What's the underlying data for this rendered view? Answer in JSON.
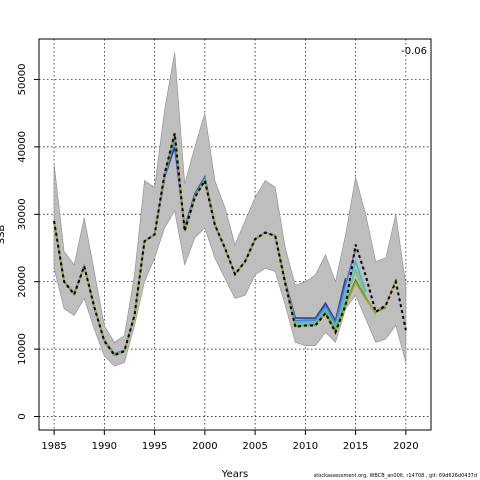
{
  "chart_data": {
    "type": "line",
    "title": "",
    "xlabel": "Years",
    "ylabel": "SSB",
    "annotation": "-0.06",
    "xlim": [
      1983.5,
      2022.5
    ],
    "ylim": [
      -2000,
      56000
    ],
    "x_ticks": [
      "1985",
      "1990",
      "1995",
      "2000",
      "2005",
      "2010",
      "2015",
      "2020"
    ],
    "y_ticks": [
      "0",
      "10000",
      "20000",
      "30000",
      "40000",
      "50000"
    ],
    "grid": true,
    "grid_style": "dotted",
    "colors": {
      "ci_band": "#bebebe",
      "ci_band_edge": "#8a8a8a",
      "peels": [
        "#1f3fb0",
        "#4a78d8",
        "#41b8c8",
        "#7cc46a",
        "#2f8a2f",
        "#b0a030"
      ],
      "terminal": "#000000"
    },
    "confidence_band": {
      "x": [
        1985,
        1986,
        1987,
        1988,
        1989,
        1990,
        1991,
        1992,
        1993,
        1994,
        1995,
        1996,
        1997,
        1998,
        1999,
        2000,
        2001,
        2002,
        2003,
        2004,
        2005,
        2006,
        2007,
        2008,
        2009,
        2010,
        2011,
        2012,
        2013,
        2014,
        2015,
        2016,
        2017,
        2018,
        2019,
        2020
      ],
      "upper": [
        37500,
        24500,
        22500,
        29500,
        21500,
        13500,
        11000,
        12000,
        21000,
        35000,
        34000,
        45500,
        54000,
        34500,
        40000,
        45000,
        35000,
        31000,
        25500,
        29000,
        32500,
        35000,
        34000,
        25000,
        19500,
        20000,
        21000,
        24000,
        20000,
        27000,
        35500,
        30000,
        23000,
        23500,
        30000,
        19500
      ],
      "lower": [
        22000,
        16000,
        15000,
        17500,
        13000,
        9000,
        7500,
        8000,
        13500,
        20000,
        23500,
        28000,
        30500,
        22500,
        26500,
        28000,
        23500,
        20500,
        17500,
        18000,
        21000,
        22000,
        21500,
        16500,
        11000,
        10500,
        10500,
        12500,
        11000,
        16000,
        18000,
        14500,
        11000,
        11500,
        13500,
        8000
      ]
    },
    "series": [
      {
        "end": 2014,
        "color_index": 0,
        "x": [
          1985,
          1986,
          1987,
          1988,
          1989,
          1990,
          1991,
          1992,
          1993,
          1994,
          1995,
          1996,
          1997,
          1998,
          1999,
          2000,
          2001,
          2002,
          2003,
          2004,
          2005,
          2006,
          2007,
          2008,
          2009,
          2010,
          2011,
          2012,
          2013,
          2014
        ],
        "values": [
          28800,
          20000,
          18300,
          22300,
          16300,
          11300,
          9300,
          9800,
          15000,
          26000,
          27000,
          35500,
          40000,
          28000,
          33000,
          35500,
          28500,
          25000,
          21100,
          23000,
          26300,
          27300,
          26800,
          20000,
          14600,
          14600,
          14600,
          16800,
          14200,
          20500
        ]
      },
      {
        "end": 2015,
        "color_index": 1,
        "x": [
          1985,
          1986,
          1987,
          1988,
          1989,
          1990,
          1991,
          1992,
          1993,
          1994,
          1995,
          1996,
          1997,
          1998,
          1999,
          2000,
          2001,
          2002,
          2003,
          2004,
          2005,
          2006,
          2007,
          2008,
          2009,
          2010,
          2011,
          2012,
          2013,
          2014,
          2015
        ],
        "values": [
          28900,
          20000,
          18300,
          22300,
          16300,
          11300,
          9300,
          9800,
          15000,
          26000,
          27000,
          35500,
          41000,
          27700,
          32800,
          35300,
          28500,
          25000,
          21100,
          23000,
          26300,
          27300,
          26800,
          20000,
          14200,
          14300,
          14300,
          16400,
          13900,
          19600,
          24800
        ]
      },
      {
        "end": 2016,
        "color_index": 2,
        "x": [
          1985,
          1986,
          1987,
          1988,
          1989,
          1990,
          1991,
          1992,
          1993,
          1994,
          1995,
          1996,
          1997,
          1998,
          1999,
          2000,
          2001,
          2002,
          2003,
          2004,
          2005,
          2006,
          2007,
          2008,
          2009,
          2010,
          2011,
          2012,
          2013,
          2014,
          2015,
          2016
        ],
        "values": [
          28900,
          20000,
          18200,
          22300,
          16300,
          11200,
          9200,
          9800,
          15000,
          26000,
          27000,
          35800,
          41500,
          27600,
          32700,
          35200,
          28500,
          25000,
          21100,
          23000,
          26300,
          27300,
          26800,
          19900,
          13900,
          14000,
          14000,
          16000,
          13500,
          18300,
          23000,
          18500
        ]
      },
      {
        "end": 2017,
        "color_index": 3,
        "x": [
          1985,
          1986,
          1987,
          1988,
          1989,
          1990,
          1991,
          1992,
          1993,
          1994,
          1995,
          1996,
          1997,
          1998,
          1999,
          2000,
          2001,
          2002,
          2003,
          2004,
          2005,
          2006,
          2007,
          2008,
          2009,
          2010,
          2011,
          2012,
          2013,
          2014,
          2015,
          2016,
          2017
        ],
        "values": [
          28900,
          20000,
          18200,
          22300,
          16300,
          11200,
          9200,
          9700,
          15000,
          26000,
          27000,
          36000,
          41800,
          27500,
          32600,
          35100,
          28500,
          25000,
          21100,
          23000,
          26300,
          27300,
          26800,
          19800,
          13600,
          13700,
          13800,
          15700,
          13100,
          17500,
          21700,
          17800,
          15000
        ]
      },
      {
        "end": 2018,
        "color_index": 4,
        "x": [
          1985,
          1986,
          1987,
          1988,
          1989,
          1990,
          1991,
          1992,
          1993,
          1994,
          1995,
          1996,
          1997,
          1998,
          1999,
          2000,
          2001,
          2002,
          2003,
          2004,
          2005,
          2006,
          2007,
          2008,
          2009,
          2010,
          2011,
          2012,
          2013,
          2014,
          2015,
          2016,
          2017,
          2018
        ],
        "values": [
          29000,
          20000,
          18100,
          22300,
          16200,
          11200,
          9100,
          9700,
          15000,
          26000,
          27000,
          36000,
          42000,
          27500,
          32500,
          35000,
          28400,
          25000,
          21100,
          23000,
          26300,
          27300,
          26800,
          19700,
          13400,
          13500,
          13600,
          15400,
          12700,
          16700,
          20200,
          17500,
          15500,
          16200
        ]
      },
      {
        "end": 2019,
        "color_index": 5,
        "x": [
          1985,
          1986,
          1987,
          1988,
          1989,
          1990,
          1991,
          1992,
          1993,
          1994,
          1995,
          1996,
          1997,
          1998,
          1999,
          2000,
          2001,
          2002,
          2003,
          2004,
          2005,
          2006,
          2007,
          2008,
          2009,
          2010,
          2011,
          2012,
          2013,
          2014,
          2015,
          2016,
          2017,
          2018,
          2019
        ],
        "values": [
          29000,
          20000,
          18100,
          22300,
          16200,
          11200,
          9100,
          9700,
          15000,
          26000,
          27000,
          36000,
          42000,
          27500,
          32500,
          35000,
          28400,
          25000,
          21100,
          23000,
          26300,
          27300,
          26800,
          19700,
          13300,
          13500,
          13500,
          15300,
          12500,
          16500,
          19900,
          17400,
          15600,
          16500,
          20300
        ]
      },
      {
        "end": 2020,
        "color_index": -1,
        "terminal": true,
        "x": [
          1985,
          1986,
          1987,
          1988,
          1989,
          1990,
          1991,
          1992,
          1993,
          1994,
          1995,
          1996,
          1997,
          1998,
          1999,
          2000,
          2001,
          2002,
          2003,
          2004,
          2005,
          2006,
          2007,
          2008,
          2009,
          2010,
          2011,
          2012,
          2013,
          2014,
          2015,
          2016,
          2017,
          2018,
          2019,
          2020
        ],
        "values": [
          29000,
          20000,
          18100,
          22300,
          16200,
          11200,
          9100,
          9700,
          15000,
          26000,
          27000,
          36000,
          42000,
          27500,
          32500,
          35000,
          28400,
          25000,
          21100,
          23000,
          26300,
          27300,
          26800,
          19700,
          13300,
          13500,
          13500,
          15300,
          12500,
          16500,
          25500,
          20900,
          15500,
          16500,
          20000,
          12800
        ]
      }
    ]
  },
  "footer": "stockassessment.org, WBCB_an00lt, r14708 , git: 69d626d0437d"
}
